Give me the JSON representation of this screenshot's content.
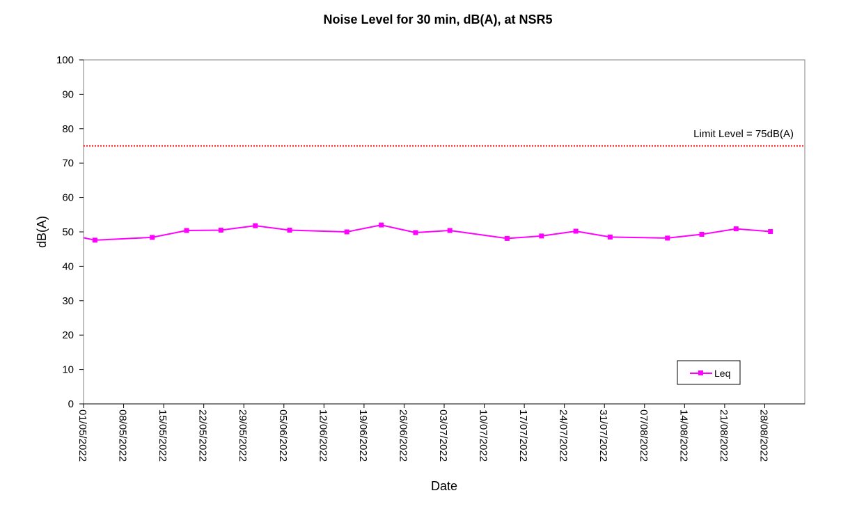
{
  "chart_data": {
    "type": "line",
    "title": "Noise Level for 30 min, dB(A), at NSR5",
    "xlabel": "Date",
    "ylabel": "dB(A)",
    "ylim": [
      0,
      100
    ],
    "yticks": [
      0,
      10,
      20,
      30,
      40,
      50,
      60,
      70,
      80,
      90,
      100
    ],
    "xlim": [
      "2022-05-01",
      "2022-09-04"
    ],
    "xtick_labels": [
      "01/05/2022",
      "08/05/2022",
      "15/05/2022",
      "22/05/2022",
      "29/05/2022",
      "05/06/2022",
      "12/06/2022",
      "19/06/2022",
      "26/06/2022",
      "03/07/2022",
      "10/07/2022",
      "17/07/2022",
      "24/07/2022",
      "31/07/2022",
      "07/08/2022",
      "14/08/2022",
      "21/08/2022",
      "28/08/2022"
    ],
    "grid": false,
    "legend_position": "bottom-right",
    "series": [
      {
        "name": "Leq",
        "color": "#ff00ff",
        "marker": "square",
        "x": [
          "2022-05-03",
          "2022-05-13",
          "2022-05-19",
          "2022-05-25",
          "2022-05-31",
          "2022-06-06",
          "2022-06-16",
          "2022-06-22",
          "2022-06-28",
          "2022-07-04",
          "2022-07-14",
          "2022-07-20",
          "2022-07-26",
          "2022-08-01",
          "2022-08-11",
          "2022-08-17",
          "2022-08-23",
          "2022-08-29"
        ],
        "values": [
          47.6,
          48.4,
          50.4,
          50.5,
          51.8,
          50.5,
          50.0,
          52.0,
          49.8,
          50.4,
          48.1,
          48.8,
          50.2,
          48.5,
          48.2,
          49.3,
          50.9,
          50.1
        ],
        "line_starts_at": {
          "x": "2022-05-01",
          "y": 48.3
        }
      }
    ],
    "reference_lines": [
      {
        "label": "Limit Level = 75dB(A)",
        "y": 75,
        "color": "#ff0000",
        "style": "dotted"
      }
    ]
  }
}
